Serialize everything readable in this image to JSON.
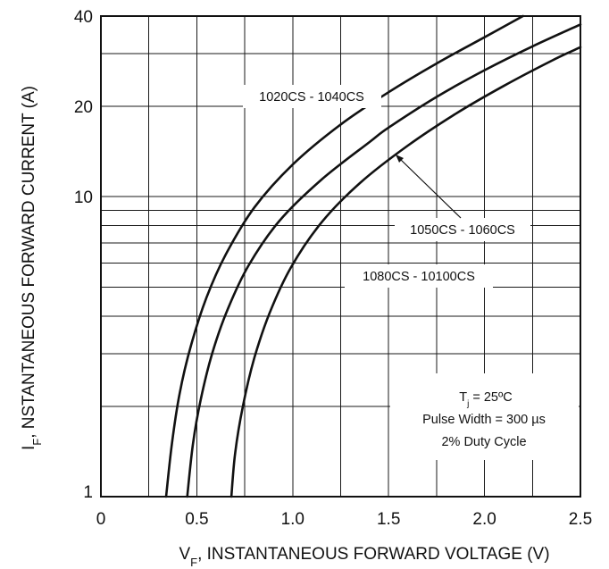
{
  "chart_data": {
    "type": "line",
    "title": "",
    "xlabel": "V_F, INSTANTANEOUS FORWARD VOLTAGE (V)",
    "xlabel_main": "V",
    "xlabel_sub": "F",
    "xlabel_rest": ", INSTANTANEOUS FORWARD VOLTAGE (V)",
    "ylabel": "I_F, NSTANTANEOUS FORWARD CURRENT (A)",
    "ylabel_main": "I",
    "ylabel_sub": "F",
    "ylabel_rest": ", NSTANTANEOUS FORWARD CURRENT (A)",
    "xlim": [
      0,
      2.5
    ],
    "ylim": [
      1,
      40
    ],
    "yscale": "log",
    "grid": true,
    "x_ticks": [
      0,
      0.5,
      1.0,
      1.5,
      2.0,
      2.5
    ],
    "x_tick_labels": [
      "0",
      "0.5",
      "1.0",
      "1.5",
      "2.0",
      "2.5"
    ],
    "y_ticks": [
      1,
      10,
      20,
      40
    ],
    "y_tick_labels": [
      "1",
      "10",
      "20",
      "40"
    ],
    "series": [
      {
        "name": "1020CS - 1040CS",
        "x": [
          0.34,
          0.37,
          0.41,
          0.47,
          0.55,
          0.65,
          0.8,
          1.0,
          1.25,
          1.5,
          1.75,
          2.0,
          2.2
        ],
        "y": [
          1.0,
          1.5,
          2.2,
          3.2,
          4.6,
          6.4,
          9.2,
          12.8,
          17.4,
          22.3,
          27.8,
          34.0,
          40.0
        ]
      },
      {
        "name": "1050CS - 1060CS",
        "x": [
          0.45,
          0.48,
          0.52,
          0.58,
          0.66,
          0.77,
          0.93,
          1.15,
          1.4,
          1.5,
          1.75,
          2.0,
          2.25,
          2.5
        ],
        "y": [
          1.0,
          1.5,
          2.1,
          3.0,
          4.2,
          5.9,
          8.3,
          11.4,
          15.2,
          17.0,
          21.5,
          26.4,
          31.7,
          37.5
        ]
      },
      {
        "name": "1080CS - 10100CS",
        "x": [
          0.68,
          0.7,
          0.74,
          0.8,
          0.88,
          0.99,
          1.15,
          1.35,
          1.6,
          1.85,
          2.1,
          2.35,
          2.5
        ],
        "y": [
          1.0,
          1.4,
          2.0,
          2.9,
          4.1,
          5.8,
          8.2,
          11.1,
          14.8,
          18.9,
          23.4,
          28.4,
          31.5
        ]
      }
    ],
    "annotations": {
      "line1_main": "T",
      "line1_sub": "j",
      "line1_rest": " =  25ºC",
      "line2": "Pulse Width =  300 µs",
      "line3": "2% Duty Cycle"
    }
  }
}
